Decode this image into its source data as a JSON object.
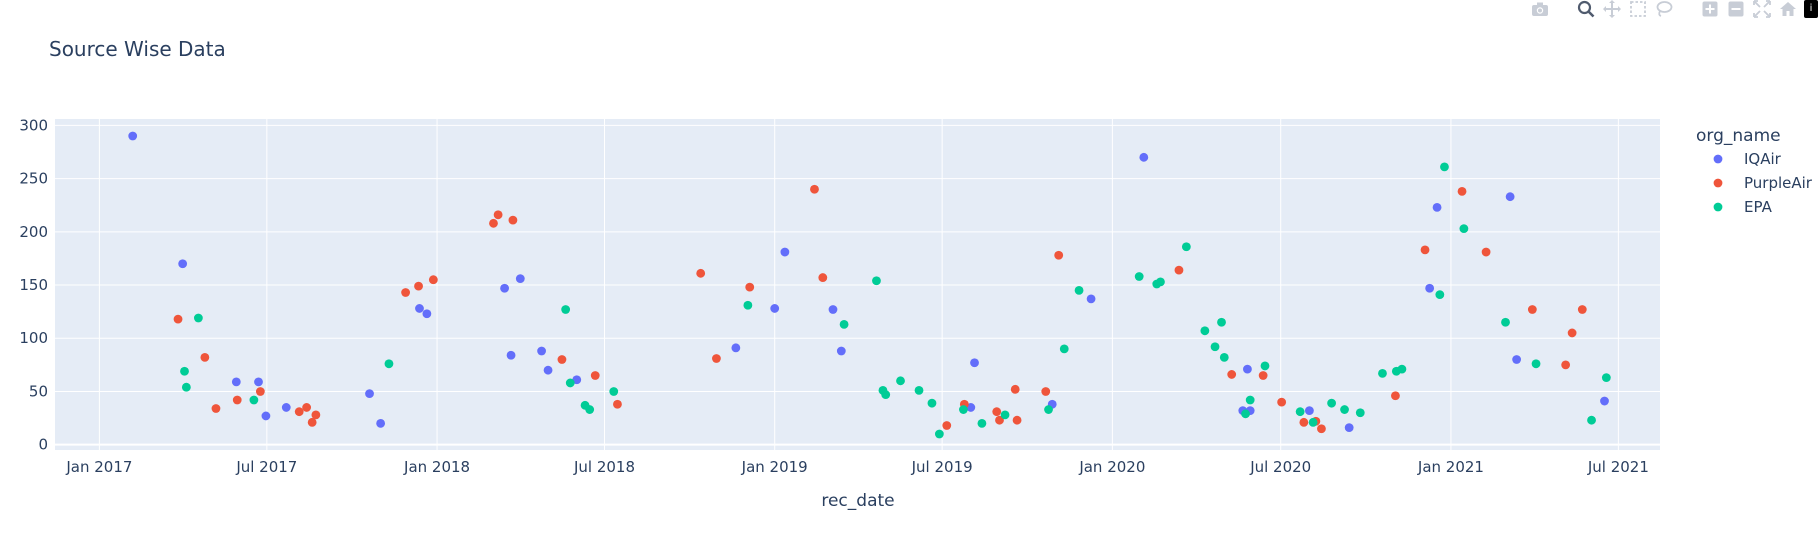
{
  "title": "Source Wise Data",
  "modebar": {
    "icons": [
      "camera-icon",
      "zoom-icon",
      "pan-icon",
      "box-select-icon",
      "lasso-select-icon",
      "zoom-in-icon",
      "zoom-out-icon",
      "autoscale-icon",
      "reset-axes-icon"
    ],
    "logo": "i"
  },
  "chart_data": {
    "type": "scatter",
    "title": "Source Wise Data",
    "xlabel": "rec_date",
    "ylabel": "",
    "x_type": "date",
    "xlim": [
      "2016-11-14",
      "2021-08-15"
    ],
    "ylim": [
      -5,
      306
    ],
    "yticks": [
      0,
      50,
      100,
      150,
      200,
      250,
      300
    ],
    "xticks": [
      {
        "date": "2017-01-01",
        "label": "Jan 2017"
      },
      {
        "date": "2017-07-01",
        "label": "Jul 2017"
      },
      {
        "date": "2018-01-01",
        "label": "Jan 2018"
      },
      {
        "date": "2018-07-01",
        "label": "Jul 2018"
      },
      {
        "date": "2019-01-01",
        "label": "Jan 2019"
      },
      {
        "date": "2019-07-01",
        "label": "Jul 2019"
      },
      {
        "date": "2020-01-01",
        "label": "Jan 2020"
      },
      {
        "date": "2020-07-01",
        "label": "Jul 2020"
      },
      {
        "date": "2021-01-01",
        "label": "Jan 2021"
      },
      {
        "date": "2021-07-01",
        "label": "Jul 2021"
      }
    ],
    "grid": true,
    "legend_title": "org_name",
    "legend_position": "right",
    "series": [
      {
        "name": "IQAir",
        "color": "#636efa",
        "points": [
          {
            "x": "2017-02-06",
            "y": 290
          },
          {
            "x": "2017-04-01",
            "y": 170
          },
          {
            "x": "2017-05-29",
            "y": 59
          },
          {
            "x": "2017-06-22",
            "y": 59
          },
          {
            "x": "2017-06-30",
            "y": 27
          },
          {
            "x": "2017-07-22",
            "y": 35
          },
          {
            "x": "2017-10-20",
            "y": 48
          },
          {
            "x": "2017-11-01",
            "y": 20
          },
          {
            "x": "2017-12-13",
            "y": 128
          },
          {
            "x": "2017-12-21",
            "y": 123
          },
          {
            "x": "2018-03-15",
            "y": 147
          },
          {
            "x": "2018-03-22",
            "y": 84
          },
          {
            "x": "2018-04-01",
            "y": 156
          },
          {
            "x": "2018-04-24",
            "y": 88
          },
          {
            "x": "2018-05-01",
            "y": 70
          },
          {
            "x": "2018-06-01",
            "y": 61
          },
          {
            "x": "2018-11-20",
            "y": 91
          },
          {
            "x": "2019-01-01",
            "y": 128
          },
          {
            "x": "2019-01-12",
            "y": 181
          },
          {
            "x": "2019-03-05",
            "y": 127
          },
          {
            "x": "2019-03-14",
            "y": 88
          },
          {
            "x": "2019-08-01",
            "y": 35
          },
          {
            "x": "2019-08-05",
            "y": 77
          },
          {
            "x": "2019-10-28",
            "y": 38
          },
          {
            "x": "2019-12-09",
            "y": 137
          },
          {
            "x": "2020-02-04",
            "y": 270
          },
          {
            "x": "2020-05-21",
            "y": 32
          },
          {
            "x": "2020-05-26",
            "y": 71
          },
          {
            "x": "2020-05-29",
            "y": 32
          },
          {
            "x": "2020-08-01",
            "y": 32
          },
          {
            "x": "2020-09-13",
            "y": 16
          },
          {
            "x": "2020-12-09",
            "y": 147
          },
          {
            "x": "2020-12-17",
            "y": 223
          },
          {
            "x": "2021-03-06",
            "y": 233
          },
          {
            "x": "2021-03-13",
            "y": 80
          },
          {
            "x": "2021-06-16",
            "y": 41
          }
        ]
      },
      {
        "name": "PurpleAir",
        "color": "#ef553b",
        "points": [
          {
            "x": "2017-03-27",
            "y": 118
          },
          {
            "x": "2017-04-25",
            "y": 82
          },
          {
            "x": "2017-05-07",
            "y": 34
          },
          {
            "x": "2017-05-30",
            "y": 42
          },
          {
            "x": "2017-06-24",
            "y": 50
          },
          {
            "x": "2017-08-05",
            "y": 31
          },
          {
            "x": "2017-08-13",
            "y": 35
          },
          {
            "x": "2017-08-19",
            "y": 21
          },
          {
            "x": "2017-08-23",
            "y": 28
          },
          {
            "x": "2017-11-28",
            "y": 143
          },
          {
            "x": "2017-12-12",
            "y": 149
          },
          {
            "x": "2017-12-28",
            "y": 155
          },
          {
            "x": "2018-03-03",
            "y": 208
          },
          {
            "x": "2018-03-08",
            "y": 216
          },
          {
            "x": "2018-03-24",
            "y": 211
          },
          {
            "x": "2018-05-16",
            "y": 80
          },
          {
            "x": "2018-06-21",
            "y": 65
          },
          {
            "x": "2018-07-15",
            "y": 38
          },
          {
            "x": "2018-10-13",
            "y": 161
          },
          {
            "x": "2018-10-30",
            "y": 81
          },
          {
            "x": "2018-12-05",
            "y": 148
          },
          {
            "x": "2019-02-13",
            "y": 240
          },
          {
            "x": "2019-02-22",
            "y": 157
          },
          {
            "x": "2019-07-06",
            "y": 18
          },
          {
            "x": "2019-07-25",
            "y": 38
          },
          {
            "x": "2019-08-29",
            "y": 31
          },
          {
            "x": "2019-09-01",
            "y": 23
          },
          {
            "x": "2019-09-18",
            "y": 52
          },
          {
            "x": "2019-09-20",
            "y": 23
          },
          {
            "x": "2019-10-21",
            "y": 50
          },
          {
            "x": "2019-11-04",
            "y": 178
          },
          {
            "x": "2020-03-13",
            "y": 164
          },
          {
            "x": "2020-05-09",
            "y": 66
          },
          {
            "x": "2020-06-12",
            "y": 65
          },
          {
            "x": "2020-07-02",
            "y": 40
          },
          {
            "x": "2020-07-26",
            "y": 21
          },
          {
            "x": "2020-08-08",
            "y": 22
          },
          {
            "x": "2020-08-14",
            "y": 15
          },
          {
            "x": "2020-11-02",
            "y": 46
          },
          {
            "x": "2020-12-04",
            "y": 183
          },
          {
            "x": "2021-01-13",
            "y": 238
          },
          {
            "x": "2021-02-08",
            "y": 181
          },
          {
            "x": "2021-03-30",
            "y": 127
          },
          {
            "x": "2021-05-05",
            "y": 75
          },
          {
            "x": "2021-05-12",
            "y": 105
          },
          {
            "x": "2021-05-23",
            "y": 127
          }
        ]
      },
      {
        "name": "EPA",
        "color": "#00cc96",
        "points": [
          {
            "x": "2017-04-03",
            "y": 69
          },
          {
            "x": "2017-04-05",
            "y": 54
          },
          {
            "x": "2017-04-18",
            "y": 119
          },
          {
            "x": "2017-06-17",
            "y": 42
          },
          {
            "x": "2017-11-10",
            "y": 76
          },
          {
            "x": "2018-05-20",
            "y": 127
          },
          {
            "x": "2018-05-25",
            "y": 58
          },
          {
            "x": "2018-06-10",
            "y": 37
          },
          {
            "x": "2018-06-15",
            "y": 33
          },
          {
            "x": "2018-07-11",
            "y": 50
          },
          {
            "x": "2018-12-03",
            "y": 131
          },
          {
            "x": "2019-03-17",
            "y": 113
          },
          {
            "x": "2019-04-21",
            "y": 154
          },
          {
            "x": "2019-04-28",
            "y": 51
          },
          {
            "x": "2019-05-01",
            "y": 47
          },
          {
            "x": "2019-05-17",
            "y": 60
          },
          {
            "x": "2019-06-06",
            "y": 51
          },
          {
            "x": "2019-06-20",
            "y": 39
          },
          {
            "x": "2019-06-28",
            "y": 10
          },
          {
            "x": "2019-07-24",
            "y": 33
          },
          {
            "x": "2019-08-13",
            "y": 20
          },
          {
            "x": "2019-09-07",
            "y": 28
          },
          {
            "x": "2019-10-24",
            "y": 33
          },
          {
            "x": "2019-11-10",
            "y": 90
          },
          {
            "x": "2019-11-26",
            "y": 145
          },
          {
            "x": "2020-01-30",
            "y": 158
          },
          {
            "x": "2020-02-18",
            "y": 151
          },
          {
            "x": "2020-02-22",
            "y": 153
          },
          {
            "x": "2020-03-21",
            "y": 186
          },
          {
            "x": "2020-04-10",
            "y": 107
          },
          {
            "x": "2020-04-21",
            "y": 92
          },
          {
            "x": "2020-04-28",
            "y": 115
          },
          {
            "x": "2020-05-01",
            "y": 82
          },
          {
            "x": "2020-05-24",
            "y": 29
          },
          {
            "x": "2020-05-29",
            "y": 42
          },
          {
            "x": "2020-06-14",
            "y": 74
          },
          {
            "x": "2020-07-22",
            "y": 31
          },
          {
            "x": "2020-08-05",
            "y": 21
          },
          {
            "x": "2020-08-25",
            "y": 39
          },
          {
            "x": "2020-09-08",
            "y": 33
          },
          {
            "x": "2020-09-25",
            "y": 30
          },
          {
            "x": "2020-10-19",
            "y": 67
          },
          {
            "x": "2020-11-03",
            "y": 69
          },
          {
            "x": "2020-11-09",
            "y": 71
          },
          {
            "x": "2020-12-20",
            "y": 141
          },
          {
            "x": "2020-12-25",
            "y": 261
          },
          {
            "x": "2021-01-15",
            "y": 203
          },
          {
            "x": "2021-03-01",
            "y": 115
          },
          {
            "x": "2021-04-03",
            "y": 76
          },
          {
            "x": "2021-06-02",
            "y": 23
          },
          {
            "x": "2021-06-18",
            "y": 63
          }
        ]
      }
    ]
  }
}
